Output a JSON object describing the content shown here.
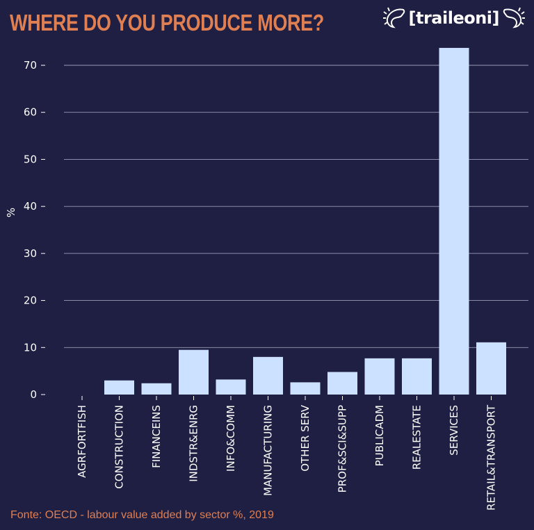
{
  "header": {
    "title": "WHERE DO YOU PRODUCE MORE?",
    "logo_text": "[traileoni]"
  },
  "footer": {
    "source": "Fonte: OECD - labour value added by sector %, 2019"
  },
  "colors": {
    "background": "#1e1f42",
    "bar": "#cce0ff",
    "accent": "#e07f52",
    "grid": "#9a9cb8"
  },
  "chart_data": {
    "type": "bar",
    "title": "WHERE DO YOU PRODUCE MORE?",
    "xlabel": "",
    "ylabel": "%",
    "ylim": [
      0,
      74
    ],
    "yticks": [
      0,
      10,
      20,
      30,
      40,
      50,
      60,
      70
    ],
    "grid": true,
    "categories": [
      "AGRFORTFISH",
      "CONSTRUCTION",
      "FINANCEINS",
      "INDSTR&ENRG",
      "INFO&COMM",
      "MANUFACTURING",
      "OTHER SERV",
      "PROF&SCI&SUPP",
      "PUBLICADM",
      "REALESTATE",
      "SERVICES",
      "RETAIL&TRANSPORT"
    ],
    "values": [
      0.0,
      3.0,
      2.4,
      9.5,
      3.2,
      8.0,
      2.6,
      4.8,
      7.7,
      7.7,
      73.7,
      11.1
    ]
  }
}
